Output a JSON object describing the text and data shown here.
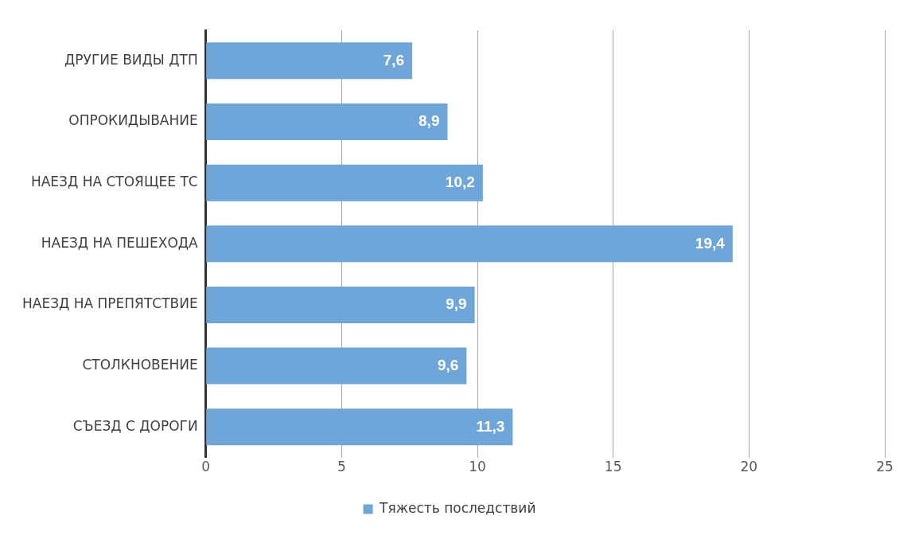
{
  "chart_data": {
    "type": "bar",
    "orientation": "horizontal",
    "categories": [
      "ДРУГИЕ ВИДЫ ДТП",
      "ОПРОКИДЫВАНИЕ",
      "НАЕЗД НА СТОЯЩЕЕ ТС",
      "НАЕЗД НА ПЕШЕХОДА",
      "НАЕЗД НА ПРЕПЯТСТВИЕ",
      "СТОЛКНОВЕНИЕ",
      "СЪЕЗД С ДОРОГИ"
    ],
    "series": [
      {
        "name": "Тяжесть последствий",
        "color": "#6fa6da",
        "values": [
          7.6,
          8.9,
          10.2,
          19.4,
          9.9,
          9.6,
          11.3
        ],
        "value_labels": [
          "7,6",
          "8,9",
          "10,2",
          "19,4",
          "9,9",
          "9,6",
          "11,3"
        ]
      }
    ],
    "xlim": [
      0,
      25
    ],
    "xticks": [
      0,
      5,
      10,
      15,
      20,
      25
    ],
    "grid": "x",
    "legend": "bottom"
  }
}
